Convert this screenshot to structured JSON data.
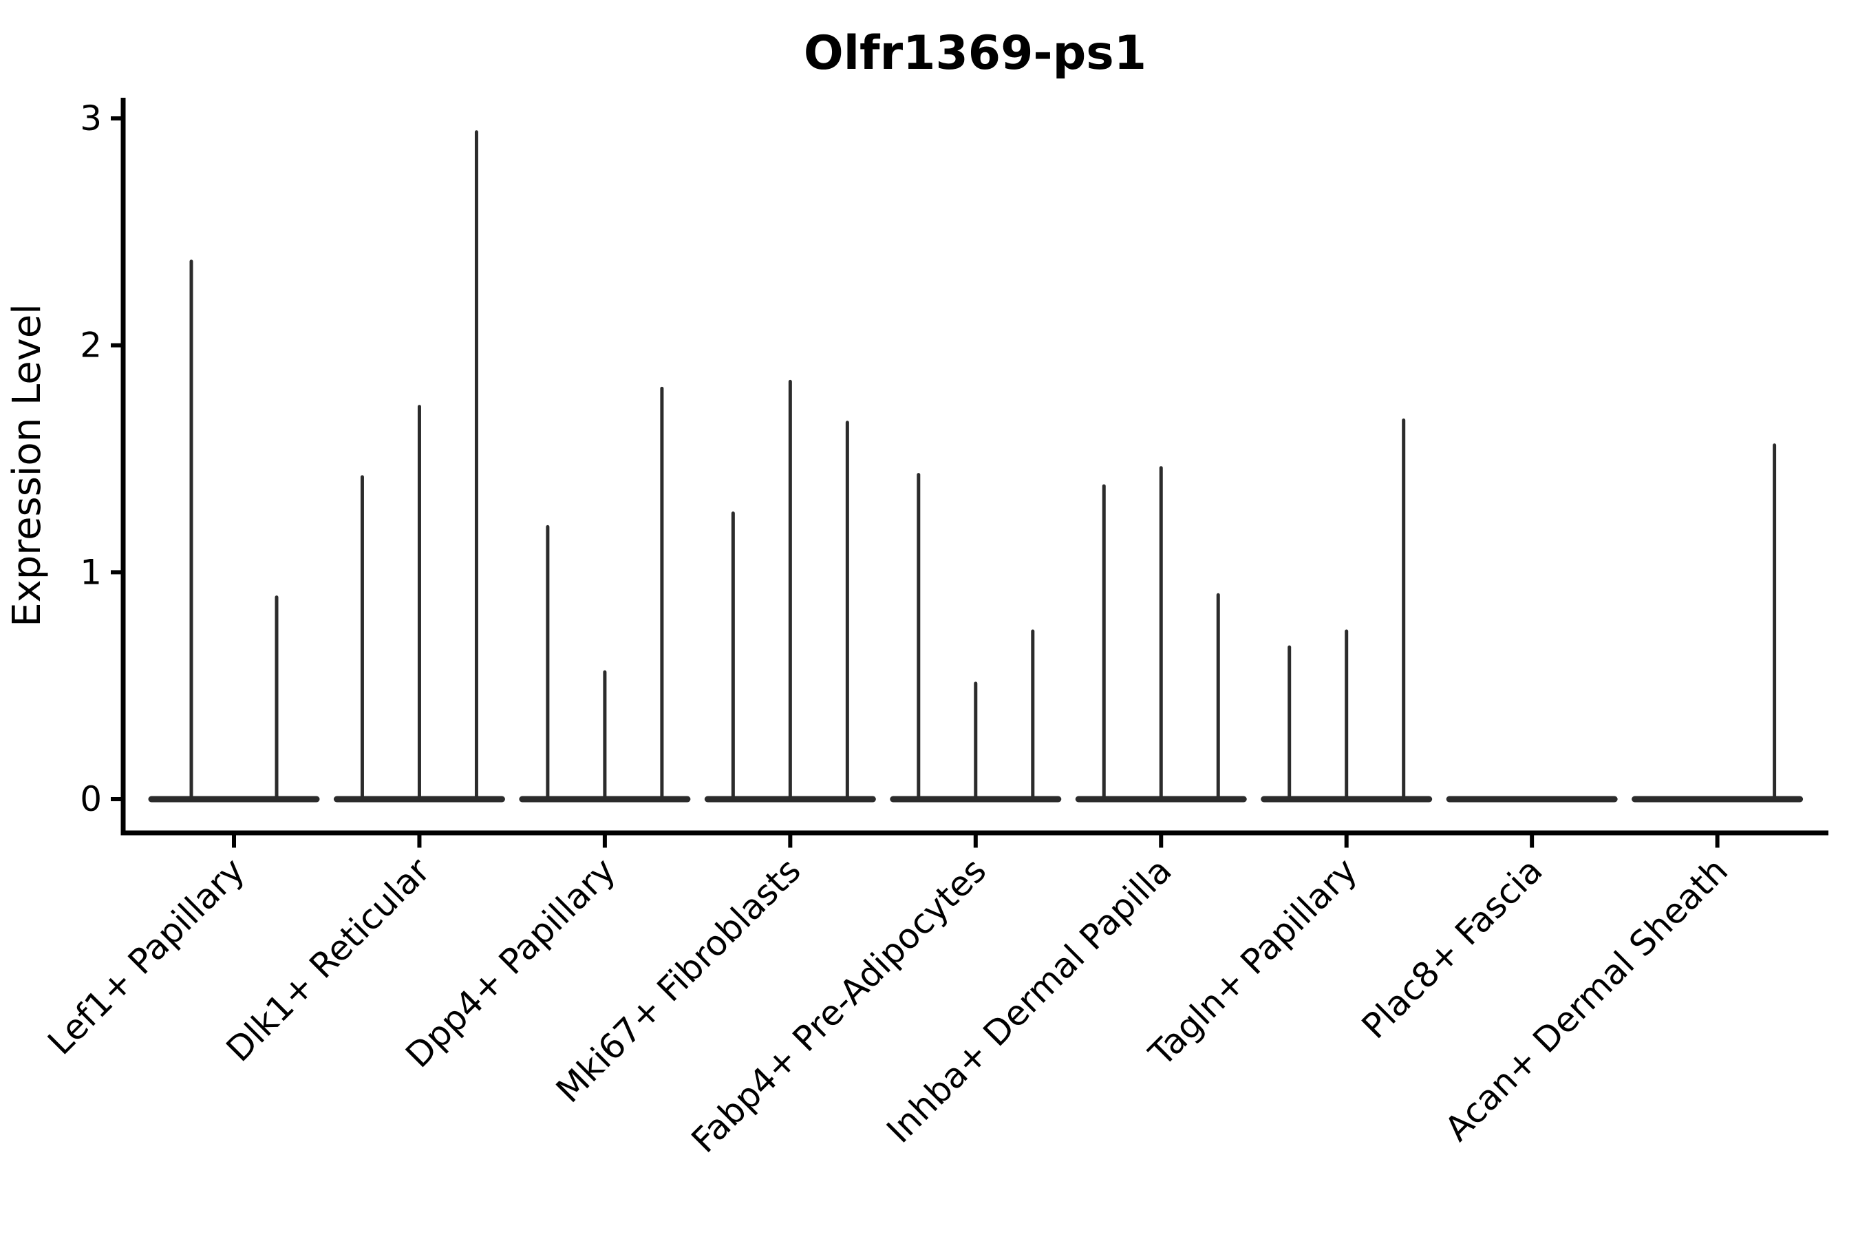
{
  "chart_data": {
    "type": "violin",
    "title": "Olfr1369-ps1",
    "ylabel": "Expression Level",
    "xlabel": "",
    "yticks": [
      "0",
      "1",
      "2",
      "3"
    ],
    "ylim": [
      0,
      3.09
    ],
    "grid": false,
    "legend": false,
    "legend_position": "none",
    "categories": [
      "Lef1+ Papillary",
      "Dlk1+ Reticular",
      "Dpp4+ Papillary",
      "Mki67+ Fibroblasts",
      "Fabp4+ Pre-Adipocytes",
      "Inhba+ Dermal Papilla",
      "Tagln+ Papillary",
      "Plac8+ Fascia",
      "Acan+ Dermal Sheath"
    ],
    "description": "Thin spike-like split violins; each category holds 2-3 violins whose bodies collapse to a flat baseline at 0 with a narrow spike up to the max expression value",
    "groups": [
      {
        "category": "Lef1+ Papillary",
        "violin_offsets": [
          -62,
          62
        ],
        "violin_max": [
          2.37,
          0.89
        ]
      },
      {
        "category": "Dlk1+ Reticular",
        "violin_offsets": [
          -83,
          0,
          83
        ],
        "violin_max": [
          1.42,
          1.73,
          2.94
        ]
      },
      {
        "category": "Dpp4+ Papillary",
        "violin_offsets": [
          -83,
          0,
          83
        ],
        "violin_max": [
          1.2,
          0.56,
          1.81
        ]
      },
      {
        "category": "Mki67+ Fibroblasts",
        "violin_offsets": [
          -83,
          0,
          83
        ],
        "violin_max": [
          1.26,
          1.84,
          1.66
        ]
      },
      {
        "category": "Fabp4+ Pre-Adipocytes",
        "violin_offsets": [
          -83,
          0,
          83
        ],
        "violin_max": [
          1.43,
          0.51,
          0.74
        ]
      },
      {
        "category": "Inhba+ Dermal Papilla",
        "violin_offsets": [
          -83,
          0,
          83
        ],
        "violin_max": [
          1.38,
          1.46,
          0.9
        ]
      },
      {
        "category": "Tagln+ Papillary",
        "violin_offsets": [
          -83,
          0,
          83
        ],
        "violin_max": [
          0.67,
          0.74,
          1.67
        ]
      },
      {
        "category": "Plac8+ Fascia",
        "violin_offsets": [
          -83,
          0,
          83
        ],
        "violin_max": [
          0,
          0,
          0
        ]
      },
      {
        "category": "Acan+ Dermal Sheath",
        "violin_offsets": [
          -83,
          0,
          83
        ],
        "violin_max": [
          0,
          0,
          1.56
        ]
      }
    ],
    "colors": {
      "violin": "#2b2b2b",
      "axis": "#000000",
      "text": "#000000",
      "background": "#ffffff"
    }
  }
}
